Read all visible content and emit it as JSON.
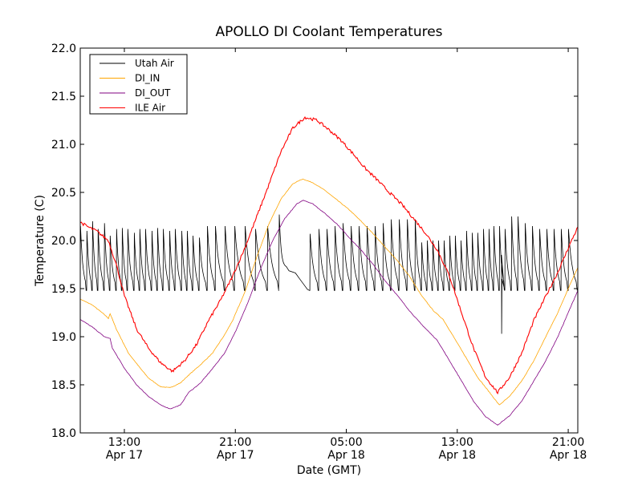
{
  "chart_data": {
    "type": "line",
    "title": "APOLLO DI Coolant Temperatures",
    "xlabel": "Date (GMT)",
    "ylabel": "Temperature (C)",
    "x_units": "hours since 00:00 Apr 17 (GMT)",
    "xlim": [
      9.82,
      45.69
    ],
    "ylim": [
      18.0,
      22.0
    ],
    "yticks": [
      18.0,
      18.5,
      19.0,
      19.5,
      20.0,
      20.5,
      21.0,
      21.5,
      22.0
    ],
    "ytick_labels": [
      "18.0",
      "18.5",
      "19.0",
      "19.5",
      "20.0",
      "20.5",
      "21.0",
      "21.5",
      "22.0"
    ],
    "xticks": [
      13,
      21,
      29,
      37,
      45
    ],
    "xtick_labels": [
      {
        "time": "13:00",
        "date": "Apr 17"
      },
      {
        "time": "21:00",
        "date": "Apr 17"
      },
      {
        "time": "05:00",
        "date": "Apr 18"
      },
      {
        "time": "13:00",
        "date": "Apr 18"
      },
      {
        "time": "21:00",
        "date": "Apr 18"
      }
    ],
    "grid": false,
    "legend_position": "top-left",
    "series": [
      {
        "name": "Utah Air",
        "color": "#000000",
        "kind": "sawtooth",
        "base": 19.48,
        "peaks": [
          [
            9.82,
            20.15
          ],
          [
            10.28,
            20.1
          ],
          [
            10.69,
            20.2
          ],
          [
            11.09,
            20.12
          ],
          [
            11.55,
            20.18
          ],
          [
            11.96,
            20.05
          ],
          [
            12.42,
            20.12
          ],
          [
            12.83,
            20.13
          ],
          [
            13.23,
            20.12
          ],
          [
            13.7,
            20.08
          ],
          [
            14.1,
            20.12
          ],
          [
            14.51,
            20.12
          ],
          [
            14.97,
            20.1
          ],
          [
            15.38,
            20.13
          ],
          [
            15.79,
            20.12
          ],
          [
            16.25,
            20.1
          ],
          [
            16.65,
            20.12
          ],
          [
            17.12,
            20.1
          ],
          [
            17.52,
            20.1
          ],
          [
            17.93,
            20.05
          ],
          [
            18.39,
            20.03
          ],
          [
            18.97,
            20.15
          ],
          [
            19.55,
            20.15
          ],
          [
            20.24,
            20.15
          ],
          [
            20.94,
            20.15
          ],
          [
            21.69,
            20.15
          ],
          [
            22.44,
            20.12
          ],
          [
            23.31,
            20.15
          ],
          [
            24.17,
            20.27
          ],
          [
            26.37,
            20.07
          ],
          [
            27.01,
            20.12
          ],
          [
            27.59,
            20.12
          ],
          [
            28.17,
            20.15
          ],
          [
            28.75,
            20.18
          ],
          [
            29.33,
            20.15
          ],
          [
            29.9,
            20.15
          ],
          [
            30.48,
            20.15
          ],
          [
            31.06,
            20.15
          ],
          [
            31.64,
            20.18
          ],
          [
            32.22,
            20.22
          ],
          [
            32.8,
            20.22
          ],
          [
            33.38,
            20.22
          ],
          [
            33.95,
            20.22
          ],
          [
            34.42,
            19.98
          ],
          [
            34.82,
            20.0
          ],
          [
            35.22,
            20.0
          ],
          [
            35.63,
            20.0
          ],
          [
            36.03,
            20.0
          ],
          [
            36.44,
            20.05
          ],
          [
            36.84,
            20.05
          ],
          [
            37.25,
            20.0
          ],
          [
            37.65,
            20.1
          ],
          [
            38.06,
            20.08
          ],
          [
            38.46,
            20.08
          ],
          [
            38.87,
            20.12
          ],
          [
            39.27,
            20.12
          ],
          [
            39.62,
            20.15
          ],
          [
            40.03,
            20.15
          ],
          [
            40.43,
            20.12
          ],
          [
            40.9,
            20.25
          ],
          [
            41.36,
            20.25
          ],
          [
            41.88,
            20.18
          ],
          [
            42.4,
            20.15
          ],
          [
            42.92,
            20.12
          ],
          [
            43.44,
            20.12
          ],
          [
            43.96,
            20.12
          ],
          [
            44.48,
            20.12
          ],
          [
            45.0,
            20.12
          ]
        ],
        "gap": {
          "start": 24.17,
          "end": 26.37,
          "values": [
            [
              24.87,
              19.7
            ],
            [
              25.33,
              19.65
            ],
            [
              25.68,
              19.6
            ],
            [
              26.2,
              19.5
            ]
          ]
        },
        "spike": {
          "hour": 40.2,
          "min": 19.03
        }
      },
      {
        "name": "DI_IN",
        "color": "#FFA500",
        "kind": "line",
        "points": [
          [
            9.82,
            19.39
          ],
          [
            10.69,
            19.33
          ],
          [
            11.56,
            19.23
          ],
          [
            11.85,
            19.19
          ],
          [
            11.97,
            19.24
          ],
          [
            12.42,
            19.08
          ],
          [
            13.29,
            18.83
          ],
          [
            14.16,
            18.67
          ],
          [
            14.74,
            18.57
          ],
          [
            15.61,
            18.48
          ],
          [
            16.3,
            18.47
          ],
          [
            17.05,
            18.52
          ],
          [
            17.63,
            18.6
          ],
          [
            18.5,
            18.71
          ],
          [
            19.36,
            18.83
          ],
          [
            20.23,
            19.02
          ],
          [
            20.81,
            19.17
          ],
          [
            21.68,
            19.46
          ],
          [
            22.55,
            19.83
          ],
          [
            23.42,
            20.17
          ],
          [
            24.28,
            20.43
          ],
          [
            25.15,
            20.59
          ],
          [
            25.85,
            20.64
          ],
          [
            26.6,
            20.6
          ],
          [
            27.47,
            20.52
          ],
          [
            28.34,
            20.42
          ],
          [
            29.21,
            20.32
          ],
          [
            30.07,
            20.2
          ],
          [
            30.94,
            20.07
          ],
          [
            31.81,
            19.93
          ],
          [
            32.68,
            19.79
          ],
          [
            33.55,
            19.63
          ],
          [
            34.41,
            19.43
          ],
          [
            35.28,
            19.27
          ],
          [
            35.98,
            19.18
          ],
          [
            36.73,
            19.0
          ],
          [
            37.6,
            18.79
          ],
          [
            38.46,
            18.58
          ],
          [
            39.33,
            18.42
          ],
          [
            40.03,
            18.29
          ],
          [
            40.78,
            18.38
          ],
          [
            41.65,
            18.54
          ],
          [
            42.52,
            18.75
          ],
          [
            43.38,
            19.0
          ],
          [
            44.25,
            19.25
          ],
          [
            45.12,
            19.54
          ],
          [
            45.69,
            19.72
          ]
        ]
      },
      {
        "name": "DI_OUT",
        "color": "#800080",
        "kind": "line",
        "points": [
          [
            9.82,
            19.18
          ],
          [
            10.69,
            19.1
          ],
          [
            11.56,
            19.0
          ],
          [
            11.97,
            18.98
          ],
          [
            12.14,
            18.88
          ],
          [
            13.01,
            18.67
          ],
          [
            13.88,
            18.5
          ],
          [
            14.74,
            18.38
          ],
          [
            15.61,
            18.29
          ],
          [
            16.3,
            18.25
          ],
          [
            17.05,
            18.29
          ],
          [
            17.63,
            18.42
          ],
          [
            18.5,
            18.52
          ],
          [
            19.36,
            18.67
          ],
          [
            20.23,
            18.83
          ],
          [
            21.1,
            19.08
          ],
          [
            21.97,
            19.38
          ],
          [
            22.83,
            19.71
          ],
          [
            23.7,
            20.0
          ],
          [
            24.57,
            20.23
          ],
          [
            25.44,
            20.38
          ],
          [
            25.9,
            20.42
          ],
          [
            26.6,
            20.38
          ],
          [
            27.47,
            20.28
          ],
          [
            28.34,
            20.17
          ],
          [
            29.21,
            20.03
          ],
          [
            30.07,
            19.9
          ],
          [
            30.94,
            19.75
          ],
          [
            31.81,
            19.58
          ],
          [
            32.68,
            19.43
          ],
          [
            33.55,
            19.27
          ],
          [
            34.41,
            19.13
          ],
          [
            35.57,
            18.96
          ],
          [
            36.44,
            18.75
          ],
          [
            37.31,
            18.54
          ],
          [
            38.17,
            18.33
          ],
          [
            39.04,
            18.17
          ],
          [
            39.91,
            18.08
          ],
          [
            40.78,
            18.18
          ],
          [
            41.65,
            18.33
          ],
          [
            42.52,
            18.54
          ],
          [
            43.38,
            18.75
          ],
          [
            44.25,
            19.0
          ],
          [
            45.12,
            19.29
          ],
          [
            45.69,
            19.48
          ]
        ]
      },
      {
        "name": "ILE Air",
        "color": "#FF0000",
        "kind": "line",
        "points": [
          [
            9.82,
            20.19
          ],
          [
            10.4,
            20.14
          ],
          [
            10.98,
            20.1
          ],
          [
            11.85,
            20.0
          ],
          [
            12.42,
            19.75
          ],
          [
            13.01,
            19.42
          ],
          [
            13.88,
            19.08
          ],
          [
            14.74,
            18.88
          ],
          [
            15.61,
            18.73
          ],
          [
            16.47,
            18.64
          ],
          [
            17.34,
            18.75
          ],
          [
            18.21,
            18.92
          ],
          [
            19.08,
            19.17
          ],
          [
            19.94,
            19.38
          ],
          [
            20.81,
            19.63
          ],
          [
            21.68,
            19.92
          ],
          [
            22.55,
            20.25
          ],
          [
            23.42,
            20.58
          ],
          [
            24.28,
            20.92
          ],
          [
            25.15,
            21.17
          ],
          [
            26.02,
            21.28
          ],
          [
            26.89,
            21.25
          ],
          [
            27.76,
            21.15
          ],
          [
            28.63,
            21.04
          ],
          [
            29.5,
            20.9
          ],
          [
            30.36,
            20.75
          ],
          [
            31.23,
            20.63
          ],
          [
            32.1,
            20.5
          ],
          [
            32.97,
            20.38
          ],
          [
            33.84,
            20.23
          ],
          [
            34.7,
            20.08
          ],
          [
            35.57,
            19.9
          ],
          [
            36.44,
            19.63
          ],
          [
            37.31,
            19.25
          ],
          [
            38.17,
            18.88
          ],
          [
            39.04,
            18.58
          ],
          [
            39.91,
            18.42
          ],
          [
            40.78,
            18.58
          ],
          [
            41.65,
            18.83
          ],
          [
            42.52,
            19.17
          ],
          [
            43.38,
            19.42
          ],
          [
            44.25,
            19.67
          ],
          [
            45.12,
            19.96
          ],
          [
            45.69,
            20.14
          ]
        ]
      }
    ]
  }
}
